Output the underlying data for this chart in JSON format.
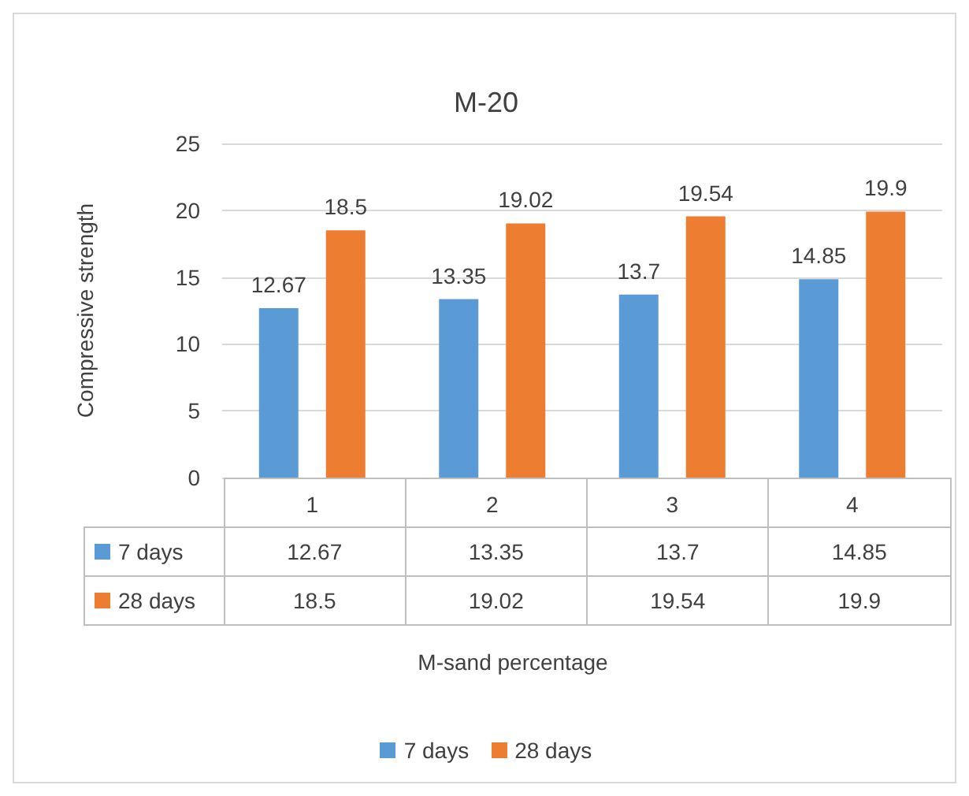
{
  "chart_data": {
    "type": "bar",
    "title": "M-20",
    "ylabel": "Compressive strength",
    "categories": [
      "1",
      "2",
      "3",
      "4"
    ],
    "series": [
      {
        "name": "7 days",
        "color": "#5b9bd5",
        "values": [
          12.67,
          13.35,
          13.7,
          14.85
        ]
      },
      {
        "name": "28 days",
        "color": "#ed7d31",
        "values": [
          18.5,
          19.02,
          19.54,
          19.9
        ]
      }
    ],
    "annotations": [
      "12.67",
      "13.35",
      "13.7",
      "14.85",
      "18.5",
      "19.02",
      "19.54",
      "19.9",
      "M-sand percentage"
    ],
    "ylim": [
      0,
      25
    ],
    "yticks": [
      0,
      5,
      10,
      15,
      20,
      25
    ],
    "grid": "y",
    "legend": "bottom",
    "data_labels": true
  }
}
